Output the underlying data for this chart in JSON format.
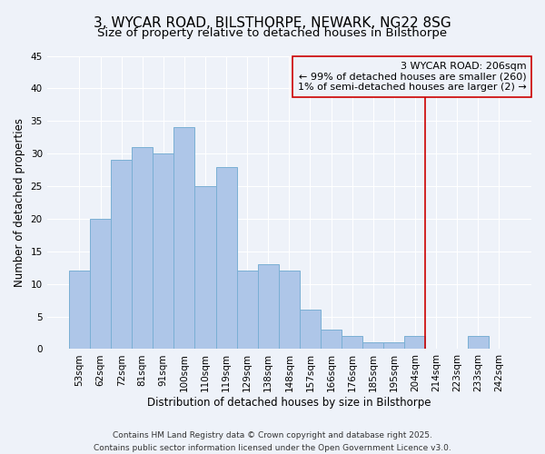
{
  "title": "3, WYCAR ROAD, BILSTHORPE, NEWARK, NG22 8SG",
  "subtitle": "Size of property relative to detached houses in Bilsthorpe",
  "xlabel": "Distribution of detached houses by size in Bilsthorpe",
  "ylabel": "Number of detached properties",
  "bar_labels": [
    "53sqm",
    "62sqm",
    "72sqm",
    "81sqm",
    "91sqm",
    "100sqm",
    "110sqm",
    "119sqm",
    "129sqm",
    "138sqm",
    "148sqm",
    "157sqm",
    "166sqm",
    "176sqm",
    "185sqm",
    "195sqm",
    "204sqm",
    "214sqm",
    "223sqm",
    "233sqm",
    "242sqm"
  ],
  "bar_values": [
    12,
    20,
    29,
    31,
    30,
    34,
    25,
    28,
    12,
    13,
    12,
    6,
    3,
    2,
    1,
    1,
    2,
    0,
    0,
    2,
    0
  ],
  "bar_color": "#aec6e8",
  "bar_edgecolor": "#7aafd4",
  "vline_x_index": 16.5,
  "vline_color": "#cc0000",
  "annotation_title": "3 WYCAR ROAD: 206sqm",
  "annotation_line2": "← 99% of detached houses are smaller (260)",
  "annotation_line3": "1% of semi-detached houses are larger (2) →",
  "annotation_box_edgecolor": "#cc0000",
  "ylim": [
    0,
    45
  ],
  "yticks": [
    0,
    5,
    10,
    15,
    20,
    25,
    30,
    35,
    40,
    45
  ],
  "footer_line1": "Contains HM Land Registry data © Crown copyright and database right 2025.",
  "footer_line2": "Contains public sector information licensed under the Open Government Licence v3.0.",
  "bg_color": "#eef2f9",
  "grid_color": "#ffffff",
  "title_fontsize": 11,
  "subtitle_fontsize": 9.5,
  "axis_label_fontsize": 8.5,
  "tick_fontsize": 7.5,
  "annotation_fontsize": 8,
  "footer_fontsize": 6.5
}
